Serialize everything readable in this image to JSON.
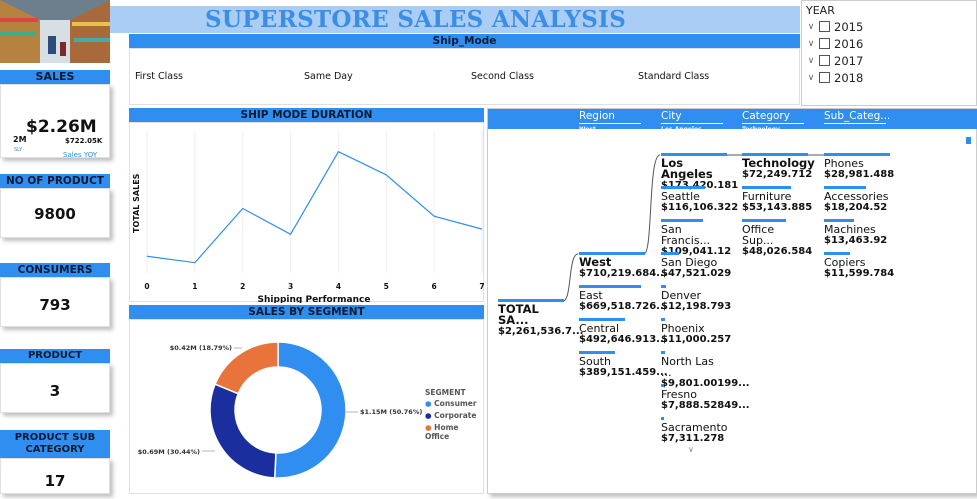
{
  "title": "SUPERSTORE SALES ANALYSIS",
  "colors": {
    "accent": "#2f8ef0",
    "title": "#3a8ee6",
    "title_bg": "#a9cdf5",
    "consumer": "#2f8ef0",
    "corporate": "#1a2e9e",
    "home_office": "#e8743b"
  },
  "sidebar": {
    "sales": {
      "label": "SALES",
      "value": "$2.26M",
      "target": "2M",
      "target_label": "SLY",
      "secondary": "$722.05K",
      "secondary_label": "Sales YOY"
    },
    "products": {
      "label": "NO OF PRODUCT",
      "value": "9800"
    },
    "consumers": {
      "label": "CONSUMERS",
      "value": "793"
    },
    "category": {
      "label": "PRODUCT CATEGORY",
      "value": "3"
    },
    "subcategory": {
      "label": "PRODUCT SUB CATEGORY",
      "value": "17"
    }
  },
  "ship_mode": {
    "title": "Ship_Mode",
    "options": [
      "First Class",
      "Same Day",
      "Second Class",
      "Standard Class"
    ]
  },
  "year_slicer": {
    "title": "YEAR",
    "years": [
      "2015",
      "2016",
      "2017",
      "2018"
    ]
  },
  "ship_duration_chart": {
    "title": "SHIP MODE DURATION",
    "chart_data": {
      "type": "line",
      "x": [
        0,
        1,
        2,
        3,
        4,
        5,
        6,
        7
      ],
      "values": [
        65,
        40,
        250,
        150,
        470,
        380,
        220,
        170
      ],
      "xlabel": "Shipping Performance",
      "ylabel": "TOTAL SALES",
      "xlim": [
        0,
        7
      ],
      "ylim": [
        0,
        550
      ],
      "tick_labels": [
        "0",
        "1",
        "2",
        "3",
        "4",
        "5",
        "6",
        "7"
      ]
    }
  },
  "segment_chart": {
    "title": "SALES BY SEGMENT",
    "legend_title": "SEGMENT",
    "chart_data": {
      "type": "pie",
      "categories": [
        "Consumer",
        "Corporate",
        "Home Office"
      ],
      "values": [
        50.76,
        30.44,
        18.79
      ],
      "labels": [
        "$1.15M (50.76%)",
        "$0.69M (30.44%)",
        "$0.42M (18.79%)"
      ]
    }
  },
  "tree": {
    "headers": [
      {
        "title": "Region",
        "sub": "West"
      },
      {
        "title": "City",
        "sub": "Los Angeles"
      },
      {
        "title": "Category",
        "sub": "Technology"
      },
      {
        "title": "Sub_Categ...",
        "sub": ""
      }
    ],
    "root": {
      "name": "TOTAL SA...",
      "value": "$2,261,536.7..."
    },
    "regions": [
      {
        "name": "West",
        "value": "$710,219.684...",
        "pct": 100
      },
      {
        "name": "East",
        "value": "$669,518.726...",
        "pct": 94
      },
      {
        "name": "Central",
        "value": "$492,646.913...",
        "pct": 69
      },
      {
        "name": "South",
        "value": "$389,151.459...",
        "pct": 55
      }
    ],
    "cities": [
      {
        "name": "Los Angeles",
        "value": "$173,420.181",
        "pct": 100
      },
      {
        "name": "Seattle",
        "value": "$116,106.322",
        "pct": 67
      },
      {
        "name": "San Francis...",
        "value": "$109,041.12",
        "pct": 63
      },
      {
        "name": "San Diego",
        "value": "$47,521.029",
        "pct": 27
      },
      {
        "name": "Denver",
        "value": "$12,198.793",
        "pct": 7
      },
      {
        "name": "Phoenix",
        "value": "$11,000.257",
        "pct": 6
      },
      {
        "name": "North Las ...",
        "value": "$9,801.00199...",
        "pct": 6
      },
      {
        "name": "Fresno",
        "value": "$7,888.52849...",
        "pct": 5
      },
      {
        "name": "Sacramento",
        "value": "$7,311.278",
        "pct": 4
      }
    ],
    "categories": [
      {
        "name": "Technology",
        "value": "$72,249.712",
        "pct": 100
      },
      {
        "name": "Furniture",
        "value": "$53,143.885",
        "pct": 74
      },
      {
        "name": "Office Sup...",
        "value": "$48,026.584",
        "pct": 66
      }
    ],
    "subcategories": [
      {
        "name": "Phones",
        "value": "$28,981.488",
        "pct": 100
      },
      {
        "name": "Accessories",
        "value": "$18,204.52",
        "pct": 63
      },
      {
        "name": "Machines",
        "value": "$13,463.92",
        "pct": 46
      },
      {
        "name": "Copiers",
        "value": "$11,599.784",
        "pct": 40
      }
    ]
  }
}
